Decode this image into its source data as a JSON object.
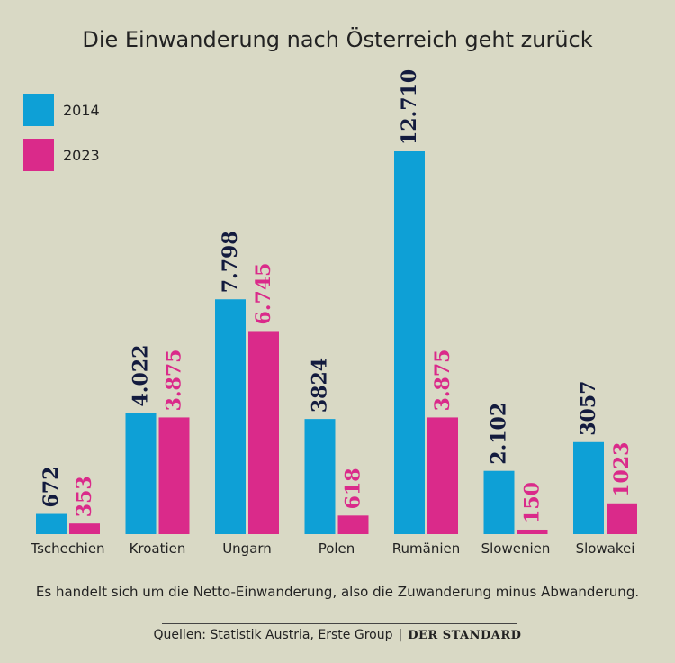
{
  "title": "Die Einwanderung nach Österreich geht zurück",
  "colors": {
    "s2014": "#0ea0d6",
    "s2023": "#da2a8a",
    "label2014": "#131b3e",
    "label2023": "#da2a8a",
    "background": "#d9d9c5"
  },
  "legend": [
    {
      "label": "2014",
      "color": "#0ea0d6"
    },
    {
      "label": "2023",
      "color": "#da2a8a"
    }
  ],
  "chart_data": {
    "type": "bar",
    "title": "Die Einwanderung nach Österreich geht zurück",
    "categories": [
      "Tschechien",
      "Kroatien",
      "Ungarn",
      "Polen",
      "Rumänien",
      "Slowenien",
      "Slowakei"
    ],
    "series": [
      {
        "name": "2014",
        "values": [
          672,
          4022,
          7798,
          3824,
          12710,
          2102,
          3057
        ],
        "labels": [
          "672",
          "4.022",
          "7.798",
          "3824",
          "12.710",
          "2.102",
          "3057"
        ]
      },
      {
        "name": "2023",
        "values": [
          353,
          3875,
          6745,
          618,
          3875,
          150,
          1023
        ],
        "labels": [
          "353",
          "3.875",
          "6.745",
          "618",
          "3.875",
          "150",
          "1023"
        ]
      }
    ],
    "xlabel": "",
    "ylabel": "",
    "ylim": [
      0,
      12710
    ],
    "grid": false,
    "legend_position": "top-left"
  },
  "footer": {
    "note": "Es handelt sich um die Netto-Einwanderung, also die Zuwanderung minus Abwanderung.",
    "source": "Quellen: Statistik Austria, Erste Group",
    "separator": "|",
    "brand": "DER STANDARD"
  }
}
